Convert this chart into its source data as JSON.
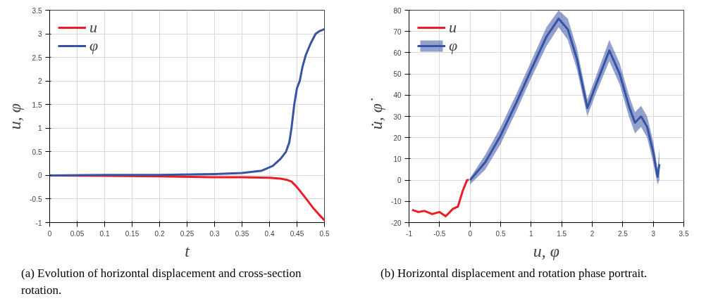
{
  "chart_data": [
    {
      "type": "line",
      "xlabel": "t",
      "ylabel": "u, φ",
      "xlim": [
        0,
        0.5
      ],
      "ylim": [
        -1,
        3.5
      ],
      "xticks": [
        0,
        0.05,
        0.1,
        0.15,
        0.2,
        0.25,
        0.3,
        0.35,
        0.4,
        0.45,
        0.5
      ],
      "yticks": [
        -1,
        -0.5,
        0,
        0.5,
        1,
        1.5,
        2,
        2.5,
        3,
        3.5
      ],
      "grid": true,
      "legend": "top left",
      "line_style": "solid",
      "annotations": [
        "(a) Evolution of horizontal displacement and cross-section rotation."
      ],
      "series": [
        {
          "name": "u",
          "color": "#ee1c25",
          "x": [
            0,
            0.1,
            0.2,
            0.3,
            0.35,
            0.4,
            0.42,
            0.43,
            0.44,
            0.45,
            0.467,
            0.48,
            0.49,
            0.5
          ],
          "values": [
            0,
            -0.01,
            -0.02,
            -0.04,
            -0.04,
            -0.05,
            -0.07,
            -0.09,
            -0.13,
            -0.25,
            -0.5,
            -0.7,
            -0.83,
            -0.95
          ]
        },
        {
          "name": "φ",
          "color": "#3953a4",
          "x": [
            0,
            0.1,
            0.2,
            0.3,
            0.35,
            0.386,
            0.406,
            0.42,
            0.43,
            0.436,
            0.44,
            0.445,
            0.45,
            0.455,
            0.46,
            0.466,
            0.475,
            0.484,
            0.49,
            0.5
          ],
          "values": [
            0,
            0.01,
            0.01,
            0.03,
            0.05,
            0.1,
            0.2,
            0.35,
            0.5,
            0.7,
            1.0,
            1.5,
            1.85,
            2.0,
            2.3,
            2.55,
            2.8,
            3.0,
            3.05,
            3.1
          ]
        }
      ]
    },
    {
      "type": "line",
      "xlabel": "u, φ",
      "ylabel": "u̇, φ̇",
      "xlim": [
        -1,
        3.5
      ],
      "ylim": [
        -20,
        80
      ],
      "xticks": [
        -1,
        -0.5,
        0,
        0.5,
        1,
        1.5,
        2,
        2.5,
        3,
        3.5
      ],
      "yticks": [
        -20,
        -10,
        0,
        10,
        20,
        30,
        40,
        50,
        60,
        70,
        80
      ],
      "grid": true,
      "legend": "top left",
      "line_style": "solid",
      "annotations": [
        "(b) Horizontal displacement and rotation phase portrait."
      ],
      "series": [
        {
          "name": "u",
          "color": "#ee1c25",
          "x": [
            -0.95,
            -0.85,
            -0.75,
            -0.62,
            -0.5,
            -0.4,
            -0.28,
            -0.2,
            -0.12,
            -0.05,
            -0.02
          ],
          "values": [
            -14,
            -15,
            -14.5,
            -16,
            -15,
            -17,
            -13.5,
            -12.5,
            -5,
            0,
            0
          ]
        },
        {
          "name": "φ",
          "color": "#3953a4",
          "x": [
            0,
            0.25,
            0.5,
            0.75,
            1.0,
            1.25,
            1.45,
            1.6,
            1.75,
            1.92,
            2.05,
            2.28,
            2.45,
            2.6,
            2.7,
            2.8,
            2.9,
            3.0,
            3.07,
            3.1
          ],
          "values": [
            0,
            8.5,
            21,
            36,
            52,
            67.5,
            76,
            71,
            57,
            34,
            44,
            61,
            50,
            35,
            27,
            30,
            25,
            13,
            1.5,
            7.5
          ],
          "lower": [
            -2,
            5,
            17,
            32,
            48,
            63,
            72,
            66,
            52,
            30,
            40,
            56,
            45,
            30,
            22,
            25,
            20,
            8,
            -2,
            0
          ],
          "upper": [
            1,
            12,
            25,
            40,
            56,
            72,
            80,
            76,
            62,
            38,
            48,
            66,
            55,
            40,
            32,
            35,
            30,
            18,
            5,
            15
          ]
        }
      ]
    }
  ]
}
